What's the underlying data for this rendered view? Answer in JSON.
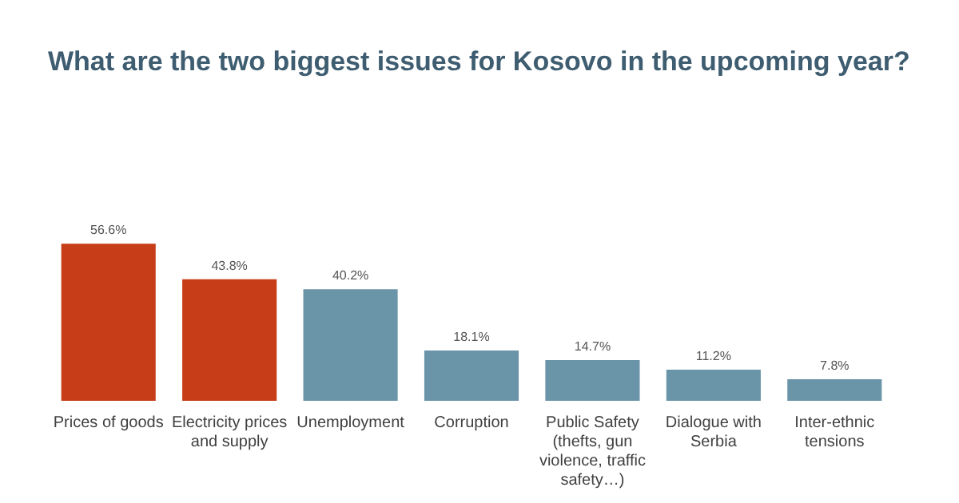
{
  "chart_data": {
    "type": "bar",
    "title": "What are the two biggest issues for Kosovo in the upcoming year?",
    "categories": [
      "Prices of goods",
      "Electricity prices and supply",
      "Unemployment",
      "Corruption",
      "Public Safety (thefts, gun violence, traffic safety…)",
      "Dialogue with Serbia",
      "Inter-ethnic tensions"
    ],
    "values": [
      56.6,
      43.8,
      40.2,
      18.1,
      14.7,
      11.2,
      7.8
    ],
    "value_labels": [
      "56.6%",
      "43.8%",
      "40.2%",
      "18.1%",
      "14.7%",
      "11.2%",
      "7.8%"
    ],
    "colors": [
      "#c63d17",
      "#c63d17",
      "#6a94a8",
      "#6a94a8",
      "#6a94a8",
      "#6a94a8",
      "#6a94a8"
    ]
  }
}
